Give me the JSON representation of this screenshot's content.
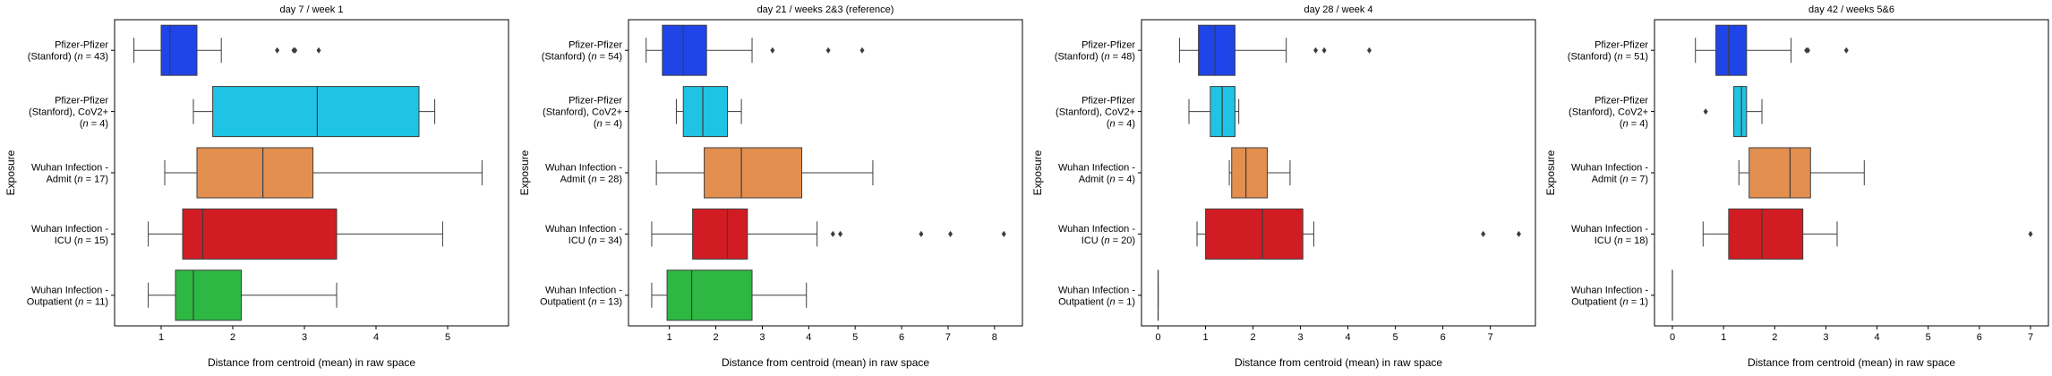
{
  "figure": {
    "ylabel": "Exposure",
    "xlabel": "Distance from centroid (mean) in raw space",
    "categories": [
      [
        "Pfizer-Pfizer",
        "(Stanford) (",
        "n",
        " = 43)"
      ],
      [
        "Pfizer-Pfizer",
        "(Stanford), CoV2+",
        "(",
        "n",
        " = 4)"
      ],
      [
        "Wuhan Infection -",
        "Admit (",
        "n",
        " = 17)"
      ],
      [
        "Wuhan Infection -",
        "ICU (",
        "n",
        " = 15)"
      ],
      [
        "Wuhan Infection -",
        "Outpatient (",
        "n",
        " = 11)"
      ]
    ]
  },
  "colors": [
    "#1f44e8",
    "#1fc3e3",
    "#e38f4f",
    "#d11c24",
    "#2db843"
  ],
  "chart_data": [
    {
      "type": "box",
      "title": "day 7 / week 1",
      "xlabel": "Distance from centroid (mean) in raw space",
      "ylabel": "Exposure",
      "xlim": [
        0.35,
        5.85
      ],
      "xticks": [
        1,
        2,
        3,
        4,
        5
      ],
      "categories": [
        "Pfizer-Pfizer (Stanford) (n = 43)",
        "Pfizer-Pfizer (Stanford), CoV2+ (n = 4)",
        "Wuhan Infection - Admit (n = 17)",
        "Wuhan Infection - ICU (n = 15)",
        "Wuhan Infection - Outpatient (n = 11)"
      ],
      "n_labels": [
        "43",
        "4",
        "17",
        "15",
        "11"
      ],
      "boxes": [
        {
          "whislo": 0.62,
          "q1": 1.0,
          "med": 1.12,
          "q3": 1.5,
          "whishi": 1.84,
          "fliers": [
            2.62,
            2.85,
            2.87,
            3.2
          ]
        },
        {
          "whislo": 1.45,
          "q1": 1.72,
          "med": 3.18,
          "q3": 4.6,
          "whishi": 4.82,
          "fliers": []
        },
        {
          "whislo": 1.05,
          "q1": 1.5,
          "med": 2.42,
          "q3": 3.12,
          "whishi": 5.48,
          "fliers": []
        },
        {
          "whislo": 0.82,
          "q1": 1.3,
          "med": 1.58,
          "q3": 3.45,
          "whishi": 4.93,
          "fliers": []
        },
        {
          "whislo": 0.82,
          "q1": 1.2,
          "med": 1.45,
          "q3": 2.12,
          "whishi": 3.45,
          "fliers": []
        }
      ]
    },
    {
      "type": "box",
      "title": "day 21 / weeks 2&3 (reference)",
      "xlabel": "Distance from centroid (mean) in raw space",
      "ylabel": "Exposure",
      "xlim": [
        0.12,
        8.6
      ],
      "xticks": [
        1,
        2,
        3,
        4,
        5,
        6,
        7,
        8
      ],
      "categories": [
        "Pfizer-Pfizer (Stanford) (n = 54)",
        "Pfizer-Pfizer (Stanford), CoV2+ (n = 4)",
        "Wuhan Infection - Admit (n = 28)",
        "Wuhan Infection - ICU (n = 34)",
        "Wuhan Infection - Outpatient (n = 13)"
      ],
      "n_labels": [
        "54",
        "4",
        "28",
        "34",
        "13"
      ],
      "boxes": [
        {
          "whislo": 0.5,
          "q1": 0.85,
          "med": 1.3,
          "q3": 1.8,
          "whishi": 2.78,
          "fliers": [
            3.22,
            4.42,
            5.15
          ]
        },
        {
          "whislo": 1.15,
          "q1": 1.3,
          "med": 1.72,
          "q3": 2.25,
          "whishi": 2.55,
          "fliers": []
        },
        {
          "whislo": 0.72,
          "q1": 1.75,
          "med": 2.55,
          "q3": 3.85,
          "whishi": 5.38,
          "fliers": []
        },
        {
          "whislo": 0.62,
          "q1": 1.5,
          "med": 2.25,
          "q3": 2.68,
          "whishi": 4.18,
          "fliers": [
            4.52,
            4.68,
            6.42,
            7.05,
            8.2
          ]
        },
        {
          "whislo": 0.62,
          "q1": 0.95,
          "med": 1.48,
          "q3": 2.78,
          "whishi": 3.95,
          "fliers": []
        }
      ]
    },
    {
      "type": "box",
      "title": "day 28 / week 4",
      "xlabel": "Distance from centroid (mean) in raw space",
      "ylabel": "Exposure",
      "xlim": [
        -0.35,
        7.95
      ],
      "xticks": [
        0,
        1,
        2,
        3,
        4,
        5,
        6,
        7
      ],
      "categories": [
        "Pfizer-Pfizer (Stanford) (n = 48)",
        "Pfizer-Pfizer (Stanford), CoV2+ (n = 4)",
        "Wuhan Infection - Admit (n = 4)",
        "Wuhan Infection - ICU (n = 20)",
        "Wuhan Infection - Outpatient (n = 1)"
      ],
      "n_labels": [
        "48",
        "4",
        "4",
        "20",
        "1"
      ],
      "boxes": [
        {
          "whislo": 0.45,
          "q1": 0.85,
          "med": 1.2,
          "q3": 1.62,
          "whishi": 2.7,
          "fliers": [
            3.32,
            3.5,
            4.45
          ]
        },
        {
          "whislo": 0.65,
          "q1": 1.1,
          "med": 1.35,
          "q3": 1.62,
          "whishi": 1.7,
          "fliers": []
        },
        {
          "whislo": 1.5,
          "q1": 1.55,
          "med": 1.85,
          "q3": 2.3,
          "whishi": 2.78,
          "fliers": []
        },
        {
          "whislo": 0.82,
          "q1": 1.0,
          "med": 2.2,
          "q3": 3.05,
          "whishi": 3.28,
          "fliers": [
            6.85,
            7.6
          ]
        },
        {
          "whislo": 0.0,
          "q1": 0.0,
          "med": 0.0,
          "q3": 0.0,
          "whishi": 0.0,
          "fliers": []
        }
      ]
    },
    {
      "type": "box",
      "title": "day 42 / weeks 5&6",
      "xlabel": "Distance from centroid (mean) in raw space",
      "ylabel": "Exposure",
      "xlim": [
        -0.35,
        7.35
      ],
      "xticks": [
        0,
        1,
        2,
        3,
        4,
        5,
        6,
        7
      ],
      "categories": [
        "Pfizer-Pfizer (Stanford) (n = 51)",
        "Pfizer-Pfizer (Stanford), CoV2+ (n = 4)",
        "Wuhan Infection - Admit (n = 7)",
        "Wuhan Infection - ICU (n = 18)",
        "Wuhan Infection - Outpatient (n = 1)"
      ],
      "n_labels": [
        "51",
        "4",
        "7",
        "18",
        "1"
      ],
      "boxes": [
        {
          "whislo": 0.45,
          "q1": 0.85,
          "med": 1.1,
          "q3": 1.45,
          "whishi": 2.32,
          "fliers": [
            2.62,
            2.65,
            3.4
          ]
        },
        {
          "whislo": 1.2,
          "q1": 1.2,
          "med": 1.35,
          "q3": 1.45,
          "whishi": 1.75,
          "fliers": [
            0.65
          ]
        },
        {
          "whislo": 1.3,
          "q1": 1.5,
          "med": 2.3,
          "q3": 2.7,
          "whishi": 3.75,
          "fliers": []
        },
        {
          "whislo": 0.6,
          "q1": 1.1,
          "med": 1.75,
          "q3": 2.55,
          "whishi": 3.22,
          "fliers": [
            7.0
          ]
        },
        {
          "whislo": 0.0,
          "q1": 0.0,
          "med": 0.0,
          "q3": 0.0,
          "whishi": 0.0,
          "fliers": []
        }
      ]
    }
  ]
}
